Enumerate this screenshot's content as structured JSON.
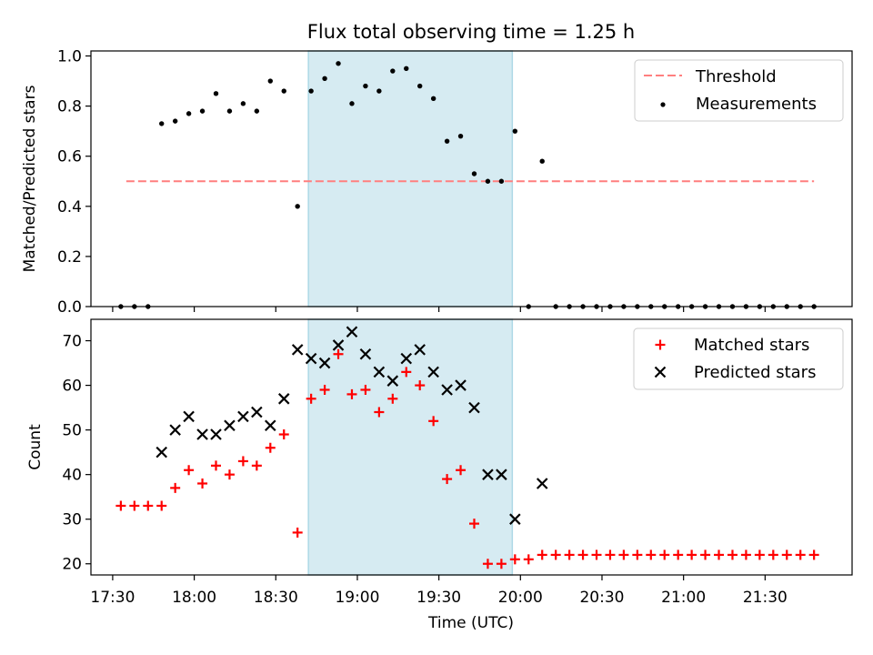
{
  "title": "Flux total observing time = 1.25 h",
  "colors": {
    "threshold": "#ff7f7f",
    "measurements": "#000000",
    "matched": "#ff0000",
    "predicted": "#000000",
    "observing_span": "#add8e6"
  },
  "chart_data": [
    {
      "type": "scatter",
      "panel": "top",
      "xlabel": "",
      "ylabel": "Matched/Predicted stars",
      "xlim": [
        "17:22",
        "22:02"
      ],
      "ylim": [
        0,
        1.02
      ],
      "xticks": [
        "17:30",
        "18:00",
        "18:30",
        "19:00",
        "19:30",
        "20:00",
        "20:30",
        "21:00",
        "21:30"
      ],
      "xtick_labels_shown": false,
      "yticks": [
        0.0,
        0.2,
        0.4,
        0.6,
        0.8,
        1.0
      ],
      "ytick_labels": [
        "0.0",
        "0.2",
        "0.4",
        "0.6",
        "0.8",
        "1.0"
      ],
      "shaded_span": [
        "18:42",
        "19:57"
      ],
      "legend": {
        "position": "top-right",
        "entries": [
          "Threshold",
          "Measurements"
        ]
      },
      "threshold": {
        "name": "Threshold",
        "y": 0.5,
        "x": [
          "17:35",
          "21:48"
        ]
      },
      "series": [
        {
          "name": "Measurements",
          "points": [
            [
              "17:33",
              0.0
            ],
            [
              "17:38",
              0.0
            ],
            [
              "17:43",
              0.0
            ],
            [
              "17:48",
              0.73
            ],
            [
              "17:53",
              0.74
            ],
            [
              "17:58",
              0.77
            ],
            [
              "18:03",
              0.78
            ],
            [
              "18:08",
              0.85
            ],
            [
              "18:13",
              0.78
            ],
            [
              "18:18",
              0.81
            ],
            [
              "18:23",
              0.78
            ],
            [
              "18:28",
              0.9
            ],
            [
              "18:33",
              0.86
            ],
            [
              "18:38",
              0.4
            ],
            [
              "18:43",
              0.86
            ],
            [
              "18:48",
              0.91
            ],
            [
              "18:53",
              0.97
            ],
            [
              "18:58",
              0.81
            ],
            [
              "19:03",
              0.88
            ],
            [
              "19:08",
              0.86
            ],
            [
              "19:13",
              0.94
            ],
            [
              "19:18",
              0.95
            ],
            [
              "19:23",
              0.88
            ],
            [
              "19:28",
              0.83
            ],
            [
              "19:33",
              0.66
            ],
            [
              "19:38",
              0.68
            ],
            [
              "19:43",
              0.53
            ],
            [
              "19:48",
              0.5
            ],
            [
              "19:53",
              0.5
            ],
            [
              "19:58",
              0.7
            ],
            [
              "20:03",
              0.0
            ],
            [
              "20:08",
              0.58
            ],
            [
              "20:13",
              0.0
            ],
            [
              "20:18",
              0.0
            ],
            [
              "20:23",
              0.0
            ],
            [
              "20:28",
              0.0
            ],
            [
              "20:33",
              0.0
            ],
            [
              "20:38",
              0.0
            ],
            [
              "20:43",
              0.0
            ],
            [
              "20:48",
              0.0
            ],
            [
              "20:53",
              0.0
            ],
            [
              "20:58",
              0.0
            ],
            [
              "21:03",
              0.0
            ],
            [
              "21:08",
              0.0
            ],
            [
              "21:13",
              0.0
            ],
            [
              "21:18",
              0.0
            ],
            [
              "21:23",
              0.0
            ],
            [
              "21:28",
              0.0
            ],
            [
              "21:33",
              0.0
            ],
            [
              "21:38",
              0.0
            ],
            [
              "21:43",
              0.0
            ],
            [
              "21:48",
              0.0
            ]
          ]
        }
      ]
    },
    {
      "type": "scatter",
      "panel": "bottom",
      "xlabel": "Time (UTC)",
      "ylabel": "Count",
      "xlim": [
        "17:22",
        "22:02"
      ],
      "ylim": [
        17.5,
        74.8
      ],
      "xticks": [
        "17:30",
        "18:00",
        "18:30",
        "19:00",
        "19:30",
        "20:00",
        "20:30",
        "21:00",
        "21:30"
      ],
      "xtick_labels": [
        "17:30",
        "18:00",
        "18:30",
        "19:00",
        "19:30",
        "20:00",
        "20:30",
        "21:00",
        "21:30"
      ],
      "yticks": [
        20,
        30,
        40,
        50,
        60,
        70
      ],
      "ytick_labels": [
        "20",
        "30",
        "40",
        "50",
        "60",
        "70"
      ],
      "shaded_span": [
        "18:42",
        "19:57"
      ],
      "legend": {
        "position": "top-right",
        "entries": [
          "Matched stars",
          "Predicted stars"
        ]
      },
      "series": [
        {
          "name": "Matched stars",
          "marker": "plus",
          "points": [
            [
              "17:33",
              33
            ],
            [
              "17:38",
              33
            ],
            [
              "17:43",
              33
            ],
            [
              "17:48",
              33
            ],
            [
              "17:53",
              37
            ],
            [
              "17:58",
              41
            ],
            [
              "18:03",
              38
            ],
            [
              "18:08",
              42
            ],
            [
              "18:13",
              40
            ],
            [
              "18:18",
              43
            ],
            [
              "18:23",
              42
            ],
            [
              "18:28",
              46
            ],
            [
              "18:33",
              49
            ],
            [
              "18:38",
              27
            ],
            [
              "18:43",
              57
            ],
            [
              "18:48",
              59
            ],
            [
              "18:53",
              67
            ],
            [
              "18:58",
              58
            ],
            [
              "19:03",
              59
            ],
            [
              "19:08",
              54
            ],
            [
              "19:13",
              57
            ],
            [
              "19:18",
              63
            ],
            [
              "19:23",
              60
            ],
            [
              "19:28",
              52
            ],
            [
              "19:33",
              39
            ],
            [
              "19:38",
              41
            ],
            [
              "19:43",
              29
            ],
            [
              "19:48",
              20
            ],
            [
              "19:53",
              20
            ],
            [
              "19:58",
              21
            ],
            [
              "20:03",
              21
            ],
            [
              "20:08",
              22
            ],
            [
              "20:13",
              22
            ],
            [
              "20:18",
              22
            ],
            [
              "20:23",
              22
            ],
            [
              "20:28",
              22
            ],
            [
              "20:33",
              22
            ],
            [
              "20:38",
              22
            ],
            [
              "20:43",
              22
            ],
            [
              "20:48",
              22
            ],
            [
              "20:53",
              22
            ],
            [
              "20:58",
              22
            ],
            [
              "21:03",
              22
            ],
            [
              "21:08",
              22
            ],
            [
              "21:13",
              22
            ],
            [
              "21:18",
              22
            ],
            [
              "21:23",
              22
            ],
            [
              "21:28",
              22
            ],
            [
              "21:33",
              22
            ],
            [
              "21:38",
              22
            ],
            [
              "21:43",
              22
            ],
            [
              "21:48",
              22
            ]
          ]
        },
        {
          "name": "Predicted stars",
          "marker": "x",
          "points": [
            [
              "17:48",
              45
            ],
            [
              "17:53",
              50
            ],
            [
              "17:58",
              53
            ],
            [
              "18:03",
              49
            ],
            [
              "18:08",
              49
            ],
            [
              "18:13",
              51
            ],
            [
              "18:18",
              53
            ],
            [
              "18:23",
              54
            ],
            [
              "18:28",
              51
            ],
            [
              "18:33",
              57
            ],
            [
              "18:38",
              68
            ],
            [
              "18:43",
              66
            ],
            [
              "18:48",
              65
            ],
            [
              "18:53",
              69
            ],
            [
              "18:58",
              72
            ],
            [
              "19:03",
              67
            ],
            [
              "19:08",
              63
            ],
            [
              "19:13",
              61
            ],
            [
              "19:18",
              66
            ],
            [
              "19:23",
              68
            ],
            [
              "19:28",
              63
            ],
            [
              "19:33",
              59
            ],
            [
              "19:38",
              60
            ],
            [
              "19:43",
              55
            ],
            [
              "19:48",
              40
            ],
            [
              "19:53",
              40
            ],
            [
              "19:58",
              30
            ],
            [
              "20:08",
              38
            ]
          ]
        }
      ]
    }
  ]
}
